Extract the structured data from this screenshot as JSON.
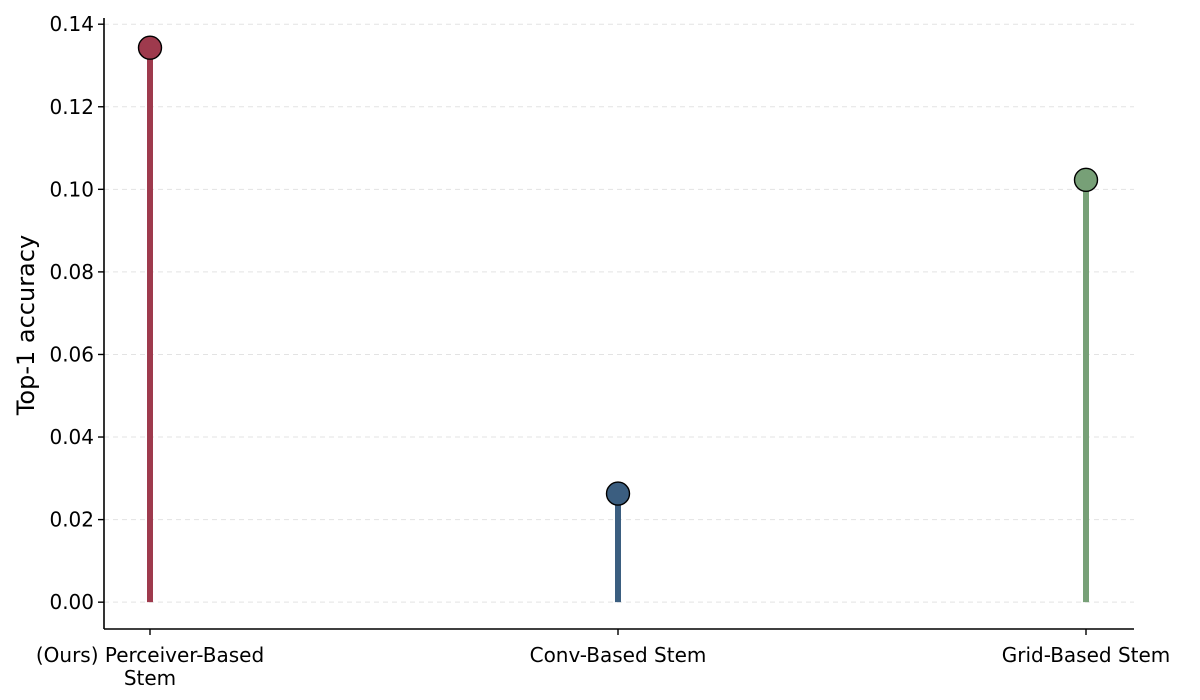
{
  "chart_data": {
    "type": "lollipop",
    "title": "",
    "xlabel": "",
    "ylabel": "Top-1 accuracy",
    "ylim": [
      -0.0065,
      0.1415
    ],
    "yticks": [
      0.0,
      0.02,
      0.04,
      0.06,
      0.08,
      0.1,
      0.12,
      0.14
    ],
    "ytick_labels": [
      "0.00",
      "0.02",
      "0.04",
      "0.06",
      "0.08",
      "0.10",
      "0.12",
      "0.14"
    ],
    "grid": "horizontal dashed",
    "legend": "none",
    "categories": [
      [
        "(Ours) Perceiver-Based",
        "Stem"
      ],
      [
        "Conv-Based Stem"
      ],
      [
        "Grid-Based Stem"
      ]
    ],
    "values": [
      0.1343,
      0.0263,
      0.1023
    ],
    "colors": [
      "#9e3a4d",
      "#3b5e80",
      "#77a077"
    ]
  }
}
